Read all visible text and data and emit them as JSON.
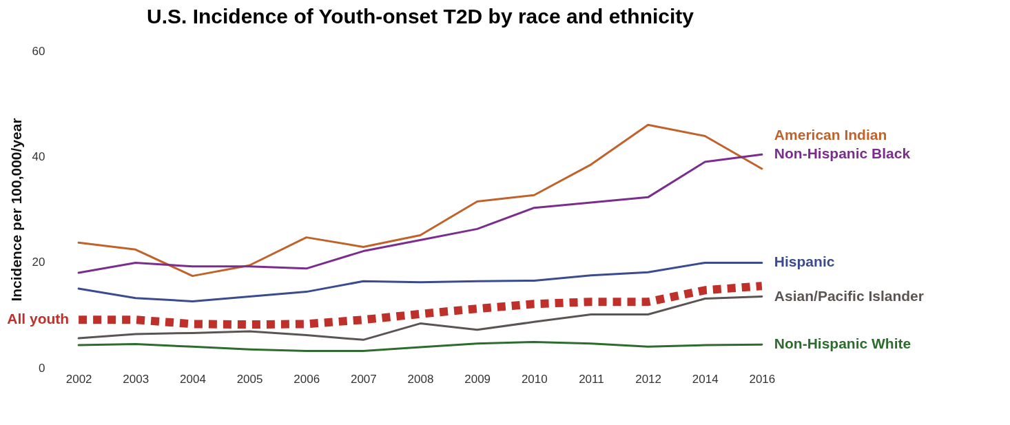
{
  "chart_data": {
    "type": "line",
    "title": "U.S. Incidence of Youth-onset T2D by race and ethnicity",
    "ylabel": "Incidence per 100,000/year",
    "categories": [
      "2002",
      "2003",
      "2004",
      "2005",
      "2006",
      "2007",
      "2008",
      "2009",
      "2010",
      "2011",
      "2012",
      "2014",
      "2016"
    ],
    "ylim": [
      0,
      60
    ],
    "yticks": [
      0,
      20,
      40,
      60
    ],
    "grid": false,
    "legend": false,
    "marker": "none",
    "series": [
      {
        "name": "American Indian",
        "color": "#c0622a",
        "line_style": "solid",
        "values": [
          23.7,
          22.4,
          17.4,
          19.4,
          24.7,
          22.9,
          25.1,
          31.5,
          32.7,
          38.5,
          46,
          43.9,
          37.7
        ]
      },
      {
        "name": "Non-Hispanic Black",
        "color": "#7b2d8e",
        "line_style": "solid",
        "values": [
          18.0,
          19.9,
          19.2,
          19.2,
          18.8,
          22.1,
          24.2,
          26.3,
          30.3,
          31.3,
          32.3,
          39,
          40.4
        ]
      },
      {
        "name": "Hispanic",
        "color": "#3a4b8f",
        "line_style": "solid",
        "values": [
          15.0,
          13.2,
          12.6,
          13.5,
          14.4,
          16.4,
          16.2,
          16.4,
          16.5,
          17.5,
          18.1,
          19.9,
          19.9
        ]
      },
      {
        "name": "All youth",
        "color": "#c0302a",
        "line_style": "dotted",
        "values": [
          9.1,
          9.1,
          8.3,
          8.2,
          8.3,
          9.1,
          10.2,
          11.2,
          12.1,
          12.5,
          12.5,
          14.7,
          15.5
        ]
      },
      {
        "name": "Asian/Pacific Islander",
        "color": "#5a5552",
        "line_style": "solid",
        "values": [
          5.6,
          6.4,
          6.6,
          6.9,
          6.2,
          5.3,
          8.4,
          7.2,
          8.7,
          10.1,
          10.1,
          13.1,
          13.5
        ]
      },
      {
        "name": "Non-Hispanic White",
        "color": "#2e6b2e",
        "line_style": "solid",
        "values": [
          4.3,
          4.5,
          4.0,
          3.5,
          3.2,
          3.2,
          3.9,
          4.6,
          4.9,
          4.6,
          4.0,
          4.3,
          4.4
        ]
      }
    ]
  }
}
